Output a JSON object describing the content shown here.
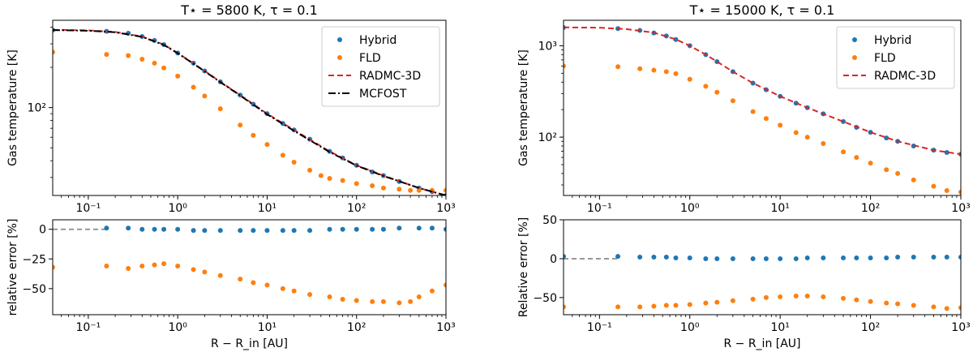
{
  "chart_data": [
    {
      "type": "scatter",
      "id": "left-top",
      "title": "T⋆ = 5800 K, τ = 0.1",
      "xlabel": "",
      "ylabel": "Gas temperature [K]",
      "xscale": "log",
      "yscale": "log",
      "xlim": [
        0.04,
        1000
      ],
      "ylim": [
        22,
        450
      ],
      "x_ticks": [
        {
          "v": 0.1,
          "label": "10⁻¹"
        },
        {
          "v": 1,
          "label": "10⁰"
        },
        {
          "v": 10,
          "label": "10¹"
        },
        {
          "v": 100,
          "label": "10²"
        },
        {
          "v": 1000,
          "label": "10³"
        }
      ],
      "y_ticks": [
        {
          "v": 100,
          "label": "10²"
        }
      ],
      "legend_position": "top-right",
      "series": [
        {
          "name": "Hybrid",
          "kind": "points",
          "color": "#1f77b4",
          "x": [
            0.04,
            0.16,
            0.28,
            0.4,
            0.55,
            0.7,
            1,
            1.5,
            2,
            3,
            5,
            7,
            10,
            15,
            20,
            30,
            50,
            70,
            100,
            150,
            200,
            300,
            500,
            700,
            1000
          ],
          "y": [
            380,
            372,
            360,
            340,
            318,
            296,
            256,
            215,
            188,
            156,
            124,
            106,
            90,
            76,
            68,
            58,
            47,
            42,
            37,
            33,
            31,
            28,
            25,
            23.5,
            22
          ]
        },
        {
          "name": "FLD",
          "kind": "points",
          "color": "#ff7f0e",
          "x": [
            0.04,
            0.16,
            0.28,
            0.4,
            0.55,
            0.7,
            1,
            1.5,
            2,
            3,
            5,
            7,
            10,
            15,
            20,
            30,
            40,
            50,
            70,
            100,
            150,
            200,
            300,
            400,
            500,
            700,
            1000
          ],
          "y": [
            260,
            250,
            245,
            230,
            215,
            198,
            172,
            142,
            122,
            98,
            74,
            62,
            53,
            44,
            39,
            34,
            31,
            29.5,
            28.5,
            27,
            26,
            25,
            24.5,
            24,
            24,
            24,
            24
          ]
        },
        {
          "name": "RADMC-3D",
          "kind": "dashed",
          "color": "#d62728",
          "x": [
            0.04,
            0.1,
            0.2,
            0.4,
            0.7,
            1,
            2,
            3,
            5,
            10,
            20,
            50,
            100,
            200,
            500,
            1000
          ],
          "y": [
            382,
            378,
            368,
            340,
            296,
            256,
            188,
            156,
            124,
            90,
            68,
            47,
            37,
            31,
            25,
            22
          ]
        },
        {
          "name": "MCFOST",
          "kind": "dashdot",
          "color": "#000000",
          "x": [
            0.04,
            0.1,
            0.2,
            0.4,
            0.7,
            1,
            2,
            3,
            5,
            10,
            20,
            50,
            100,
            200,
            500,
            1000
          ],
          "y": [
            380,
            376,
            366,
            338,
            294,
            255,
            187,
            155,
            123,
            89,
            67,
            46.5,
            36.8,
            30.8,
            25,
            22
          ]
        }
      ]
    },
    {
      "type": "scatter",
      "id": "left-bottom",
      "title": "",
      "xlabel": "R − R_in [AU]",
      "ylabel": "relative error [%]",
      "xscale": "log",
      "yscale": "linear",
      "xlim": [
        0.04,
        1000
      ],
      "ylim": [
        -72,
        8
      ],
      "x_ticks": [
        {
          "v": 0.1,
          "label": "10⁻¹"
        },
        {
          "v": 1,
          "label": "10⁰"
        },
        {
          "v": 10,
          "label": "10¹"
        },
        {
          "v": 100,
          "label": "10²"
        },
        {
          "v": 1000,
          "label": "10³"
        }
      ],
      "y_ticks": [
        {
          "v": 0,
          "label": "0"
        },
        {
          "v": -25,
          "label": "−25"
        },
        {
          "v": -50,
          "label": "−50"
        }
      ],
      "series": [
        {
          "name": "zero",
          "kind": "dashed",
          "color": "#999999",
          "x": [
            0.04,
            0.16
          ],
          "y": [
            0,
            0
          ]
        },
        {
          "name": "Hybrid",
          "kind": "points",
          "color": "#1f77b4",
          "x": [
            0.16,
            0.28,
            0.4,
            0.55,
            0.7,
            1,
            1.5,
            2,
            3,
            5,
            7,
            10,
            15,
            20,
            30,
            50,
            70,
            100,
            150,
            200,
            300,
            500,
            700,
            1000
          ],
          "y": [
            1,
            1,
            0,
            0,
            0,
            0,
            -1,
            -1,
            -1,
            -1,
            -1,
            -1,
            -1,
            -1,
            -1,
            0,
            0,
            0,
            0,
            0,
            1,
            1,
            1,
            0
          ]
        },
        {
          "name": "FLD",
          "kind": "points",
          "color": "#ff7f0e",
          "x": [
            0.04,
            0.16,
            0.28,
            0.4,
            0.55,
            0.7,
            1,
            1.5,
            2,
            3,
            5,
            7,
            10,
            15,
            20,
            30,
            50,
            70,
            100,
            150,
            200,
            300,
            400,
            500,
            700,
            1000
          ],
          "y": [
            -32,
            -31,
            -33,
            -31,
            -30,
            -29,
            -31,
            -34,
            -36,
            -39,
            -42,
            -45,
            -47,
            -50,
            -52,
            -55,
            -57,
            -59,
            -60,
            -61,
            -61,
            -62,
            -61,
            -57,
            -52,
            -47
          ]
        }
      ]
    },
    {
      "type": "scatter",
      "id": "right-top",
      "title": "T⋆ = 15000 K, τ = 0.1",
      "xlabel": "",
      "ylabel": "Gas temperature [K]",
      "xscale": "log",
      "yscale": "log",
      "xlim": [
        0.04,
        1000
      ],
      "ylim": [
        23,
        1900
      ],
      "x_ticks": [
        {
          "v": 0.1,
          "label": "10⁻¹"
        },
        {
          "v": 1,
          "label": "10⁰"
        },
        {
          "v": 10,
          "label": "10¹"
        },
        {
          "v": 100,
          "label": "10²"
        },
        {
          "v": 1000,
          "label": "10³"
        }
      ],
      "y_ticks": [
        {
          "v": 100,
          "label": "10²"
        },
        {
          "v": 1000,
          "label": "10³"
        }
      ],
      "legend_position": "top-right",
      "series": [
        {
          "name": "Hybrid",
          "kind": "points",
          "color": "#1f77b4",
          "x": [
            0.04,
            0.16,
            0.28,
            0.4,
            0.55,
            0.7,
            1,
            1.5,
            2,
            3,
            5,
            7,
            10,
            15,
            20,
            30,
            50,
            70,
            100,
            150,
            200,
            300,
            500,
            700,
            1000
          ],
          "y": [
            1580,
            1540,
            1470,
            1380,
            1280,
            1170,
            1000,
            800,
            670,
            520,
            390,
            330,
            280,
            235,
            210,
            180,
            148,
            128,
            113,
            98,
            90,
            80,
            72,
            68,
            65
          ]
        },
        {
          "name": "FLD",
          "kind": "points",
          "color": "#ff7f0e",
          "x": [
            0.04,
            0.16,
            0.28,
            0.4,
            0.55,
            0.7,
            1,
            1.5,
            2,
            3,
            5,
            7,
            10,
            15,
            20,
            30,
            50,
            70,
            100,
            150,
            200,
            300,
            500,
            700,
            1000
          ],
          "y": [
            600,
            590,
            560,
            540,
            520,
            495,
            430,
            360,
            310,
            250,
            190,
            160,
            135,
            112,
            100,
            85,
            69,
            60,
            52,
            44,
            40,
            34,
            29,
            26,
            25
          ]
        },
        {
          "name": "RADMC-3D",
          "kind": "dashed",
          "color": "#d62728",
          "x": [
            0.04,
            0.1,
            0.2,
            0.4,
            0.7,
            1,
            1.5,
            2,
            3,
            5,
            10,
            20,
            50,
            100,
            200,
            500,
            1000
          ],
          "y": [
            1590,
            1575,
            1520,
            1390,
            1175,
            1000,
            800,
            670,
            520,
            390,
            280,
            210,
            148,
            113,
            90,
            72,
            65
          ]
        }
      ]
    },
    {
      "type": "scatter",
      "id": "right-bottom",
      "title": "",
      "xlabel": "R − R_in [AU]",
      "ylabel": "Relative error [%]",
      "xscale": "log",
      "yscale": "linear",
      "xlim": [
        0.04,
        1000
      ],
      "ylim": [
        -72,
        50
      ],
      "x_ticks": [
        {
          "v": 0.1,
          "label": "10⁻¹"
        },
        {
          "v": 1,
          "label": "10⁰"
        },
        {
          "v": 10,
          "label": "10¹"
        },
        {
          "v": 100,
          "label": "10²"
        },
        {
          "v": 1000,
          "label": "10³"
        }
      ],
      "y_ticks": [
        {
          "v": 50,
          "label": "50"
        },
        {
          "v": 0,
          "label": "0"
        },
        {
          "v": -50,
          "label": "−50"
        }
      ],
      "series": [
        {
          "name": "zero",
          "kind": "dashed",
          "color": "#999999",
          "x": [
            0.04,
            0.16
          ],
          "y": [
            0,
            0
          ]
        },
        {
          "name": "Hybrid",
          "kind": "points",
          "color": "#1f77b4",
          "x": [
            0.04,
            0.16,
            0.28,
            0.4,
            0.55,
            0.7,
            1,
            1.5,
            2,
            3,
            5,
            7,
            10,
            15,
            20,
            30,
            50,
            70,
            100,
            150,
            200,
            300,
            500,
            700,
            1000
          ],
          "y": [
            3,
            3,
            2,
            2,
            2,
            1,
            1,
            0,
            0,
            0,
            0,
            0,
            0,
            0,
            1,
            1,
            1,
            1,
            1,
            1,
            2,
            2,
            2,
            2,
            2
          ]
        },
        {
          "name": "FLD",
          "kind": "points",
          "color": "#ff7f0e",
          "x": [
            0.04,
            0.16,
            0.28,
            0.4,
            0.55,
            0.7,
            1,
            1.5,
            2,
            3,
            5,
            7,
            10,
            15,
            20,
            30,
            50,
            70,
            100,
            150,
            200,
            300,
            500,
            700,
            1000
          ],
          "y": [
            -62,
            -62,
            -62,
            -61,
            -60,
            -60,
            -59,
            -57,
            -56,
            -54,
            -52,
            -50,
            -49,
            -48,
            -48,
            -49,
            -51,
            -53,
            -55,
            -57,
            -58,
            -60,
            -62,
            -64,
            -63
          ]
        }
      ]
    }
  ]
}
